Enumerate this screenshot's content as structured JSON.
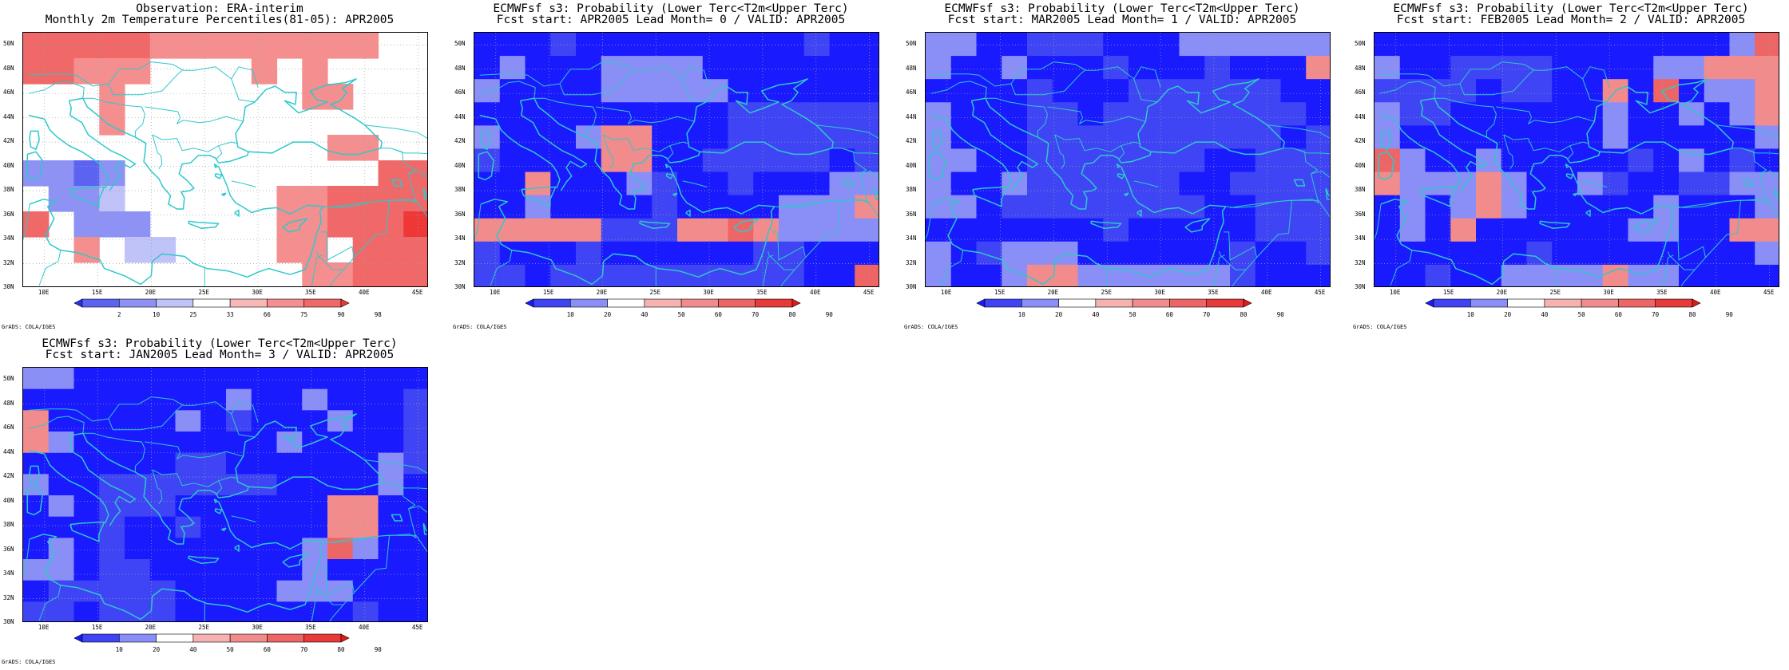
{
  "panels": [
    {
      "id": "obs",
      "title1": "Observation: ERA-interim",
      "title2": "Monthly 2m Temperature Percentiles(81-05): APR2005",
      "colorbar": {
        "labels": [
          "2",
          "10",
          "25",
          "33",
          "66",
          "75",
          "90",
          "98"
        ],
        "colors": [
          "#2a30f0",
          "#5c63f2",
          "#8d92f4",
          "#c0c3f8",
          "#ffffff",
          "#f8b8b8",
          "#f58f8f",
          "#f06868",
          "#ee3838"
        ]
      },
      "grid": [
        [
          7,
          7,
          7,
          7,
          7,
          6,
          6,
          6,
          6,
          6,
          6,
          6,
          6,
          6,
          4,
          4
        ],
        [
          7,
          7,
          6,
          6,
          6,
          4,
          4,
          4,
          4,
          6,
          4,
          6,
          4,
          4,
          4,
          4
        ],
        [
          4,
          4,
          4,
          6,
          4,
          4,
          4,
          4,
          4,
          4,
          4,
          6,
          6,
          4,
          4,
          4
        ],
        [
          4,
          4,
          4,
          6,
          4,
          4,
          4,
          4,
          4,
          4,
          4,
          4,
          4,
          4,
          4,
          4
        ],
        [
          4,
          4,
          4,
          4,
          4,
          4,
          4,
          4,
          4,
          4,
          4,
          4,
          6,
          6,
          4,
          4
        ],
        [
          2,
          2,
          1,
          2,
          4,
          4,
          4,
          4,
          4,
          4,
          4,
          4,
          4,
          4,
          7,
          7
        ],
        [
          4,
          2,
          2,
          3,
          4,
          4,
          4,
          4,
          4,
          4,
          6,
          6,
          7,
          7,
          7,
          7
        ],
        [
          7,
          4,
          2,
          2,
          2,
          4,
          4,
          4,
          4,
          4,
          6,
          6,
          7,
          7,
          7,
          8
        ],
        [
          4,
          4,
          6,
          4,
          3,
          3,
          4,
          4,
          4,
          4,
          6,
          6,
          4,
          7,
          7,
          7
        ],
        [
          4,
          4,
          4,
          4,
          4,
          4,
          4,
          4,
          4,
          4,
          4,
          6,
          6,
          7,
          7,
          7
        ]
      ]
    },
    {
      "id": "lead0",
      "title1": "ECMWFsf s3: Probability (Lower Terc<T2m<Upper Terc)",
      "title2": "Fcst start: APR2005   Lead Month= 0 / VALID: APR2005",
      "colorbar": {
        "labels": [
          "10",
          "20",
          "40",
          "50",
          "60",
          "70",
          "80",
          "90"
        ],
        "colors": [
          "#1a1aff",
          "#3f45f4",
          "#8a8ff7",
          "#ffffff",
          "#f6b1b1",
          "#f28c8c",
          "#ee6565",
          "#e93a3a",
          "#e11a1a"
        ]
      },
      "grid": [
        [
          0,
          0,
          0,
          1,
          0,
          0,
          0,
          0,
          0,
          0,
          0,
          0,
          0,
          1,
          0,
          0
        ],
        [
          0,
          2,
          0,
          0,
          0,
          2,
          2,
          2,
          2,
          0,
          0,
          0,
          0,
          0,
          0,
          0
        ],
        [
          2,
          0,
          0,
          0,
          0,
          2,
          2,
          2,
          2,
          2,
          0,
          0,
          0,
          0,
          0,
          0
        ],
        [
          0,
          0,
          0,
          0,
          0,
          0,
          0,
          0,
          0,
          0,
          1,
          1,
          1,
          1,
          1,
          1
        ],
        [
          2,
          0,
          0,
          0,
          2,
          5,
          5,
          0,
          0,
          0,
          1,
          1,
          1,
          1,
          1,
          1
        ],
        [
          1,
          0,
          0,
          0,
          0,
          5,
          5,
          0,
          0,
          1,
          1,
          1,
          1,
          1,
          0,
          1
        ],
        [
          0,
          0,
          5,
          0,
          0,
          0,
          2,
          1,
          0,
          0,
          1,
          0,
          0,
          0,
          2,
          2
        ],
        [
          0,
          0,
          2,
          0,
          0,
          0,
          0,
          1,
          0,
          0,
          0,
          0,
          2,
          2,
          2,
          5
        ],
        [
          5,
          5,
          5,
          5,
          5,
          1,
          1,
          1,
          5,
          5,
          6,
          5,
          2,
          2,
          2,
          2
        ],
        [
          1,
          0,
          0,
          0,
          1,
          0,
          0,
          0,
          0,
          0,
          0,
          1,
          1,
          0,
          0,
          0
        ],
        [
          1,
          1,
          0,
          1,
          1,
          1,
          1,
          1,
          1,
          1,
          1,
          1,
          1,
          0,
          0,
          6
        ]
      ]
    },
    {
      "id": "lead1",
      "title1": "ECMWFsf s3: Probability (Lower Terc<T2m<Upper Terc)",
      "title2": "Fcst start: MAR2005   Lead Month= 1 / VALID: APR2005",
      "colorbar": {
        "labels": [
          "10",
          "20",
          "40",
          "50",
          "60",
          "70",
          "80",
          "90"
        ],
        "colors": [
          "#1a1aff",
          "#3f45f4",
          "#8a8ff7",
          "#ffffff",
          "#f6b1b1",
          "#f28c8c",
          "#ee6565",
          "#e93a3a",
          "#e11a1a"
        ]
      },
      "grid": [
        [
          2,
          2,
          0,
          0,
          1,
          1,
          1,
          0,
          0,
          0,
          2,
          2,
          2,
          2,
          2,
          2
        ],
        [
          2,
          0,
          0,
          2,
          0,
          0,
          0,
          1,
          0,
          0,
          0,
          1,
          0,
          0,
          0,
          5
        ],
        [
          0,
          0,
          0,
          0,
          1,
          0,
          0,
          0,
          1,
          1,
          1,
          1,
          1,
          1,
          0,
          0
        ],
        [
          2,
          0,
          0,
          0,
          1,
          1,
          0,
          1,
          1,
          1,
          1,
          1,
          1,
          1,
          1,
          0
        ],
        [
          2,
          0,
          0,
          0,
          1,
          1,
          1,
          1,
          1,
          1,
          1,
          1,
          1,
          1,
          0,
          1
        ],
        [
          2,
          2,
          0,
          0,
          1,
          1,
          1,
          1,
          1,
          1,
          1,
          0,
          0,
          1,
          1,
          1
        ],
        [
          2,
          0,
          0,
          2,
          1,
          1,
          1,
          1,
          1,
          1,
          0,
          0,
          1,
          1,
          1,
          1
        ],
        [
          2,
          2,
          0,
          1,
          1,
          1,
          1,
          1,
          1,
          1,
          1,
          0,
          0,
          1,
          1,
          1
        ],
        [
          0,
          0,
          0,
          0,
          0,
          0,
          0,
          1,
          0,
          0,
          0,
          0,
          0,
          1,
          1,
          1
        ],
        [
          2,
          0,
          1,
          2,
          2,
          2,
          0,
          0,
          0,
          0,
          0,
          0,
          1,
          0,
          0,
          1
        ],
        [
          2,
          0,
          0,
          2,
          5,
          5,
          2,
          2,
          2,
          2,
          2,
          2,
          1,
          0,
          0,
          0
        ]
      ]
    },
    {
      "id": "lead2",
      "title1": "ECMWFsf s3: Probability (Lower Terc<T2m<Upper Terc)",
      "title2": "Fcst start: FEB2005   Lead Month= 2 / VALID: APR2005",
      "colorbar": {
        "labels": [
          "10",
          "20",
          "40",
          "50",
          "60",
          "70",
          "80",
          "90"
        ],
        "colors": [
          "#1a1aff",
          "#3f45f4",
          "#8a8ff7",
          "#ffffff",
          "#f6b1b1",
          "#f28c8c",
          "#ee6565",
          "#e93a3a",
          "#e11a1a"
        ]
      },
      "grid": [
        [
          0,
          0,
          0,
          0,
          0,
          0,
          0,
          0,
          0,
          0,
          0,
          0,
          0,
          0,
          2,
          6
        ],
        [
          2,
          0,
          0,
          1,
          1,
          1,
          1,
          0,
          0,
          0,
          0,
          2,
          2,
          5,
          5,
          5
        ],
        [
          1,
          1,
          1,
          1,
          0,
          1,
          1,
          0,
          0,
          5,
          0,
          6,
          0,
          2,
          2,
          5
        ],
        [
          2,
          1,
          1,
          0,
          0,
          0,
          0,
          0,
          0,
          2,
          0,
          0,
          2,
          0,
          2,
          5
        ],
        [
          2,
          0,
          0,
          0,
          0,
          0,
          0,
          0,
          0,
          2,
          0,
          0,
          0,
          0,
          0,
          2
        ],
        [
          6,
          2,
          0,
          0,
          2,
          0,
          0,
          0,
          0,
          0,
          1,
          0,
          2,
          0,
          1,
          0
        ],
        [
          5,
          2,
          2,
          2,
          5,
          2,
          0,
          0,
          2,
          1,
          0,
          0,
          1,
          1,
          2,
          2
        ],
        [
          0,
          2,
          0,
          2,
          5,
          2,
          0,
          0,
          0,
          0,
          0,
          2,
          0,
          0,
          0,
          2
        ],
        [
          0,
          2,
          0,
          5,
          0,
          0,
          0,
          0,
          0,
          0,
          2,
          2,
          0,
          0,
          5,
          5
        ],
        [
          0,
          0,
          0,
          0,
          0,
          0,
          1,
          0,
          0,
          0,
          0,
          0,
          0,
          0,
          0,
          2
        ],
        [
          0,
          0,
          1,
          0,
          0,
          2,
          2,
          2,
          2,
          5,
          2,
          2,
          0,
          0,
          0,
          0
        ]
      ]
    },
    {
      "id": "lead3",
      "title1": "ECMWFsf s3: Probability (Lower Terc<T2m<Upper Terc)",
      "title2": "Fcst start: JAN2005   Lead Month= 3 / VALID: APR2005",
      "colorbar": {
        "labels": [
          "10",
          "20",
          "40",
          "50",
          "60",
          "70",
          "80",
          "90"
        ],
        "colors": [
          "#1a1aff",
          "#3f45f4",
          "#8a8ff7",
          "#ffffff",
          "#f6b1b1",
          "#f28c8c",
          "#ee6565",
          "#e93a3a",
          "#e11a1a"
        ]
      },
      "grid": [
        [
          2,
          2,
          0,
          0,
          0,
          0,
          0,
          0,
          0,
          0,
          0,
          0,
          0,
          0,
          0,
          0
        ],
        [
          0,
          0,
          0,
          0,
          0,
          0,
          0,
          0,
          2,
          0,
          0,
          2,
          0,
          0,
          0,
          1
        ],
        [
          5,
          0,
          0,
          0,
          0,
          0,
          2,
          0,
          1,
          0,
          0,
          0,
          2,
          0,
          0,
          1
        ],
        [
          5,
          2,
          0,
          0,
          0,
          0,
          0,
          0,
          0,
          0,
          2,
          0,
          0,
          0,
          0,
          1
        ],
        [
          0,
          0,
          0,
          0,
          0,
          0,
          1,
          1,
          0,
          0,
          0,
          0,
          0,
          0,
          2,
          1
        ],
        [
          2,
          0,
          0,
          1,
          1,
          1,
          1,
          1,
          1,
          1,
          0,
          0,
          0,
          0,
          2,
          0
        ],
        [
          0,
          2,
          0,
          1,
          1,
          1,
          0,
          0,
          0,
          0,
          0,
          0,
          5,
          5,
          0,
          0
        ],
        [
          0,
          0,
          0,
          1,
          0,
          0,
          1,
          0,
          0,
          0,
          0,
          0,
          5,
          5,
          0,
          0
        ],
        [
          0,
          2,
          0,
          1,
          0,
          0,
          0,
          0,
          0,
          0,
          0,
          2,
          6,
          2,
          0,
          0
        ],
        [
          2,
          2,
          0,
          1,
          1,
          0,
          0,
          0,
          0,
          0,
          0,
          2,
          0,
          0,
          0,
          0
        ],
        [
          0,
          1,
          1,
          1,
          1,
          1,
          0,
          0,
          0,
          0,
          2,
          2,
          2,
          0,
          0,
          0
        ],
        [
          1,
          1,
          0,
          1,
          1,
          1,
          0,
          0,
          0,
          0,
          0,
          0,
          0,
          1,
          0,
          0
        ]
      ]
    }
  ],
  "axes": {
    "lat_labels": [
      "50N",
      "48N",
      "46N",
      "44N",
      "42N",
      "40N",
      "38N",
      "36N",
      "34N",
      "32N",
      "30N"
    ],
    "lon_labels": [
      "10E",
      "15E",
      "20E",
      "25E",
      "30E",
      "35E",
      "40E",
      "45E"
    ],
    "lat_range": [
      30,
      51
    ],
    "lon_range": [
      8,
      46
    ]
  },
  "credit": "GrADS: COLA/IGES",
  "coastline_color": "#2ec8cc"
}
